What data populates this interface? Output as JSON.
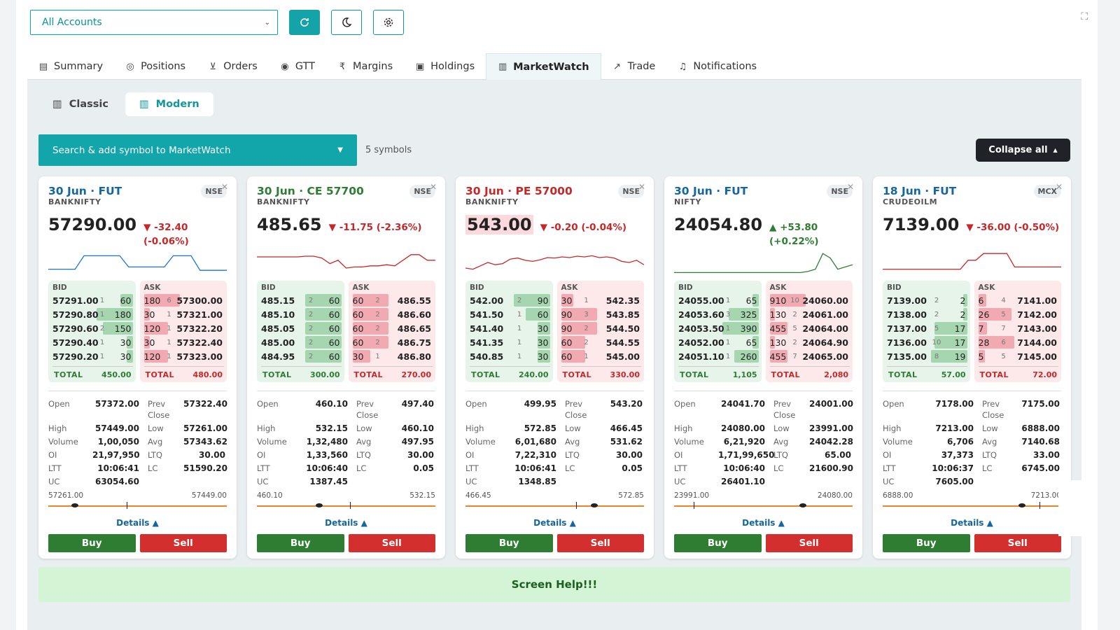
{
  "toolbar": {
    "account_value": "All Accounts"
  },
  "tabs": [
    {
      "label": "Summary",
      "icon": "document-icon"
    },
    {
      "label": "Positions",
      "icon": "compass-icon"
    },
    {
      "label": "Orders",
      "icon": "cart-icon"
    },
    {
      "label": "GTT",
      "icon": "target-icon"
    },
    {
      "label": "Margins",
      "icon": "rupee-icon"
    },
    {
      "label": "Holdings",
      "icon": "briefcase-icon"
    },
    {
      "label": "MarketWatch",
      "icon": "bar-chart-icon",
      "active": true
    },
    {
      "label": "Trade",
      "icon": "trend-icon"
    },
    {
      "label": "Notifications",
      "icon": "bell-icon"
    }
  ],
  "view_toggle": {
    "classic": "Classic",
    "modern": "Modern"
  },
  "search": {
    "placeholder": "Search & add symbol to MarketWatch"
  },
  "symbol_count": "5 symbols",
  "collapse_label": "Collapse all",
  "labels": {
    "bid": "BID",
    "ask": "ASK",
    "total": "TOTAL",
    "open": "Open",
    "prev_close": "Prev Close",
    "high": "High",
    "low": "Low",
    "volume": "Volume",
    "avg": "Avg",
    "oi": "OI",
    "ltq": "LTQ",
    "ltt": "LTT",
    "lc": "LC",
    "uc": "UC",
    "details": "Details ▲",
    "buy": "Buy",
    "sell": "Sell"
  },
  "cards": [
    {
      "title": "30 Jun · FUT",
      "title_color": "blue",
      "symbol": "BANKNIFTY",
      "exchange": "NSE",
      "ltp": "57290.00",
      "change": "▼ -32.40 (-0.06%)",
      "direction": "down",
      "spark": [
        0.2,
        0.2,
        0.2,
        0.2,
        0.8,
        0.8,
        0.8,
        0.8,
        0.8,
        0.3,
        0.3,
        0.3,
        0.3,
        0.3,
        0.8,
        0.8,
        0.8,
        0.15,
        0.15,
        0.15,
        0.15
      ],
      "bids": [
        [
          "57291.00",
          "1",
          "60"
        ],
        [
          "57290.80",
          "1",
          "180"
        ],
        [
          "57290.60",
          "2",
          "150"
        ],
        [
          "57290.40",
          "1",
          "30"
        ],
        [
          "57290.20",
          "1",
          "30"
        ]
      ],
      "asks": [
        [
          "180",
          "6",
          "57300.00"
        ],
        [
          "30",
          "1",
          "57321.00"
        ],
        [
          "120",
          "1",
          "57322.20"
        ],
        [
          "30",
          "1",
          "57322.40"
        ],
        [
          "120",
          "1",
          "57323.00"
        ]
      ],
      "bid_total": "450.00",
      "ask_total": "480.00",
      "open": "57372.00",
      "prev_close": "57322.40",
      "high": "57449.00",
      "low": "57261.00",
      "volume": "1,00,050",
      "avg": "57343.62",
      "oi": "21,97,950",
      "ltq": "30.00",
      "ltt": "10:06:41",
      "lc": "51590.20",
      "uc": "63054.60",
      "range_low": "57261.00",
      "range_high": "57449.00",
      "range_pos": 0.15,
      "range_avg": 0.44
    },
    {
      "title": "30 Jun · CE 57700",
      "title_color": "green",
      "symbol": "BANKNIFTY",
      "exchange": "NSE",
      "ltp": "485.65",
      "change": "▼ -11.75 (-2.36%)",
      "direction": "down",
      "spark": [
        0.75,
        0.75,
        0.75,
        0.75,
        0.75,
        0.75,
        0.78,
        0.78,
        0.7,
        0.45,
        0.6,
        0.25,
        0.3,
        0.3,
        0.35,
        0.35,
        0.4,
        0.35,
        0.6,
        0.85,
        0.85,
        0.6,
        0.6
      ],
      "bids": [
        [
          "485.15",
          "2",
          "60"
        ],
        [
          "485.10",
          "2",
          "60"
        ],
        [
          "485.05",
          "2",
          "60"
        ],
        [
          "485.00",
          "2",
          "60"
        ],
        [
          "484.95",
          "2",
          "60"
        ]
      ],
      "asks": [
        [
          "60",
          "2",
          "486.55"
        ],
        [
          "60",
          "2",
          "486.60"
        ],
        [
          "60",
          "2",
          "486.65"
        ],
        [
          "60",
          "2",
          "486.75"
        ],
        [
          "30",
          "1",
          "486.80"
        ]
      ],
      "bid_total": "300.00",
      "ask_total": "270.00",
      "open": "460.10",
      "prev_close": "497.40",
      "high": "532.15",
      "low": "460.10",
      "volume": "1,32,480",
      "avg": "497.95",
      "oi": "1,33,560",
      "ltq": "30.00",
      "ltt": "10:06:40",
      "lc": "0.05",
      "uc": "1387.45",
      "range_low": "460.10",
      "range_high": "532.15",
      "range_pos": 0.35,
      "range_avg": 0.52
    },
    {
      "title": "30 Jun · PE 57000",
      "title_color": "red",
      "symbol": "BANKNIFTY",
      "exchange": "NSE",
      "ltp": "543.00",
      "change": "▼ -0.20 (-0.04%)",
      "direction": "down",
      "ltp_flash": true,
      "spark": [
        0.25,
        0.2,
        0.35,
        0.5,
        0.4,
        0.45,
        0.65,
        0.7,
        0.6,
        0.55,
        0.62,
        0.72,
        0.7,
        0.75,
        0.72,
        0.78,
        0.75,
        0.8,
        0.72,
        0.75,
        0.7,
        0.55,
        0.5,
        0.6,
        0.4
      ],
      "bids": [
        [
          "542.00",
          "2",
          "90"
        ],
        [
          "541.50",
          "1",
          "60"
        ],
        [
          "541.40",
          "1",
          "30"
        ],
        [
          "541.35",
          "1",
          "30"
        ],
        [
          "540.85",
          "1",
          "30"
        ]
      ],
      "asks": [
        [
          "30",
          "1",
          "542.35"
        ],
        [
          "90",
          "3",
          "543.85"
        ],
        [
          "90",
          "2",
          "544.50"
        ],
        [
          "60",
          "2",
          "544.55"
        ],
        [
          "60",
          "1",
          "545.00"
        ]
      ],
      "bid_total": "240.00",
      "ask_total": "330.00",
      "open": "499.95",
      "prev_close": "543.20",
      "high": "572.85",
      "low": "466.45",
      "volume": "6,01,680",
      "avg": "531.62",
      "oi": "7,22,310",
      "ltq": "30.00",
      "ltt": "10:06:41",
      "lc": "0.05",
      "uc": "1348.85",
      "range_low": "466.45",
      "range_high": "572.85",
      "range_pos": 0.72,
      "range_avg": 0.62
    },
    {
      "title": "30 Jun · FUT",
      "title_color": "blue",
      "symbol": "NIFTY",
      "exchange": "NSE",
      "ltp": "24054.80",
      "change": "▲ +53.80 (+0.22%)",
      "direction": "up",
      "spark": [
        0.05,
        0.05,
        0.05,
        0.05,
        0.05,
        0.05,
        0.05,
        0.05,
        0.05,
        0.05,
        0.05,
        0.05,
        0.05,
        0.05,
        0.05,
        0.05,
        0.05,
        0.05,
        0.1,
        0.2,
        0.9,
        0.7,
        0.2,
        0.3,
        0.4
      ],
      "bids": [
        [
          "24055.00",
          "1",
          "65"
        ],
        [
          "24053.60",
          "3",
          "325"
        ],
        [
          "24053.50",
          "1",
          "390"
        ],
        [
          "24052.00",
          "1",
          "65"
        ],
        [
          "24051.10",
          "1",
          "260"
        ]
      ],
      "asks": [
        [
          "910",
          "10",
          "24060.00"
        ],
        [
          "130",
          "2",
          "24061.00"
        ],
        [
          "455",
          "5",
          "24064.00"
        ],
        [
          "130",
          "2",
          "24064.90"
        ],
        [
          "455",
          "7",
          "24065.00"
        ]
      ],
      "bid_total": "1,105",
      "ask_total": "2,080",
      "open": "24041.70",
      "prev_close": "24001.00",
      "high": "24080.00",
      "low": "23991.00",
      "volume": "6,21,920",
      "avg": "24042.28",
      "oi": "1,71,99,650",
      "ltq": "65.00",
      "ltt": "10:06:40",
      "lc": "21600.90",
      "uc": "26401.10",
      "range_low": "23991.00",
      "range_high": "24080.00",
      "range_pos": 0.72,
      "range_avg": 0.11
    },
    {
      "title": "18 Jun · FUT",
      "title_color": "blue",
      "symbol": "CRUDEOILM",
      "exchange": "MCX",
      "ltp": "7139.00",
      "change": "▼ -36.00 (-0.50%)",
      "direction": "down",
      "spark": [
        0.2,
        0.2,
        0.2,
        0.2,
        0.2,
        0.2,
        0.2,
        0.2,
        0.2,
        0.2,
        0.2,
        0.6,
        0.6,
        0.9,
        0.9,
        0.9,
        0.9,
        0.3,
        0.3,
        0.3,
        0.3,
        0.3,
        0.3,
        0.3
      ],
      "bids": [
        [
          "7139.00",
          "2",
          "2"
        ],
        [
          "7138.00",
          "2",
          "2"
        ],
        [
          "7137.00",
          "5",
          "17"
        ],
        [
          "7136.00",
          "10",
          "17"
        ],
        [
          "7135.00",
          "8",
          "19"
        ]
      ],
      "asks": [
        [
          "6",
          "4",
          "7141.00"
        ],
        [
          "26",
          "5",
          "7142.00"
        ],
        [
          "7",
          "7",
          "7143.00"
        ],
        [
          "28",
          "6",
          "7144.00"
        ],
        [
          "5",
          "5",
          "7145.00"
        ]
      ],
      "bid_total": "57.00",
      "ask_total": "72.00",
      "open": "7178.00",
      "prev_close": "7175.00",
      "high": "7213.00",
      "low": "6888.00",
      "volume": "6,706",
      "avg": "7140.68",
      "oi": "37,373",
      "ltq": "33.00",
      "ltt": "10:06:37",
      "lc": "6745.00",
      "uc": "7605.00",
      "range_low": "6888.00",
      "range_high": "7213.00",
      "range_pos": 0.78,
      "range_avg": 0.88
    }
  ],
  "help_text": "Screen Help!!!",
  "colors": {
    "accent": "#12a5aa",
    "buy": "#2e7d32",
    "sell": "#d32f2f"
  }
}
